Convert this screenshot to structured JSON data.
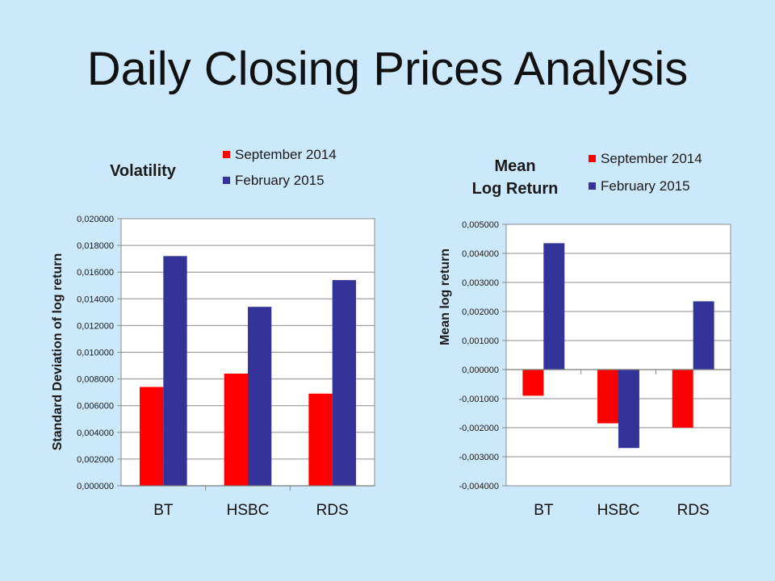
{
  "slide": {
    "title": "Daily Closing Prices Analysis"
  },
  "colors": {
    "background": "#cce8fb",
    "september": "#ff0000",
    "february": "#333399"
  },
  "chart_data": [
    {
      "type": "bar",
      "title": "Volatility",
      "ylabel": "Standard Deviation of log return",
      "xlabel": "",
      "categories": [
        "BT",
        "HSBC",
        "RDS"
      ],
      "series": [
        {
          "name": "September 2014",
          "values": [
            0.0074,
            0.0084,
            0.0069
          ]
        },
        {
          "name": "February 2015",
          "values": [
            0.0172,
            0.0134,
            0.0154
          ]
        }
      ],
      "ylim": [
        0,
        0.02
      ],
      "yticks": [
        "0,000000",
        "0,002000",
        "0,004000",
        "0,006000",
        "0,008000",
        "0,010000",
        "0,012000",
        "0,014000",
        "0,016000",
        "0,018000",
        "0,020000"
      ],
      "grid": true,
      "legend": "top-right"
    },
    {
      "type": "bar",
      "title": [
        "Mean",
        "Log Return"
      ],
      "ylabel": "Mean log return",
      "xlabel": "",
      "categories": [
        "BT",
        "HSBC",
        "RDS"
      ],
      "series": [
        {
          "name": "September 2014",
          "values": [
            -0.0009,
            -0.00185,
            -0.002
          ]
        },
        {
          "name": "February 2015",
          "values": [
            0.00435,
            -0.0027,
            0.00235
          ]
        }
      ],
      "ylim": [
        -0.004,
        0.005
      ],
      "yticks": [
        "-0,004000",
        "-0,003000",
        "-0,002000",
        "-0,001000",
        "0,000000",
        "0,001000",
        "0,002000",
        "0,003000",
        "0,004000",
        "0,005000"
      ],
      "grid": true,
      "legend": "top-right"
    }
  ]
}
